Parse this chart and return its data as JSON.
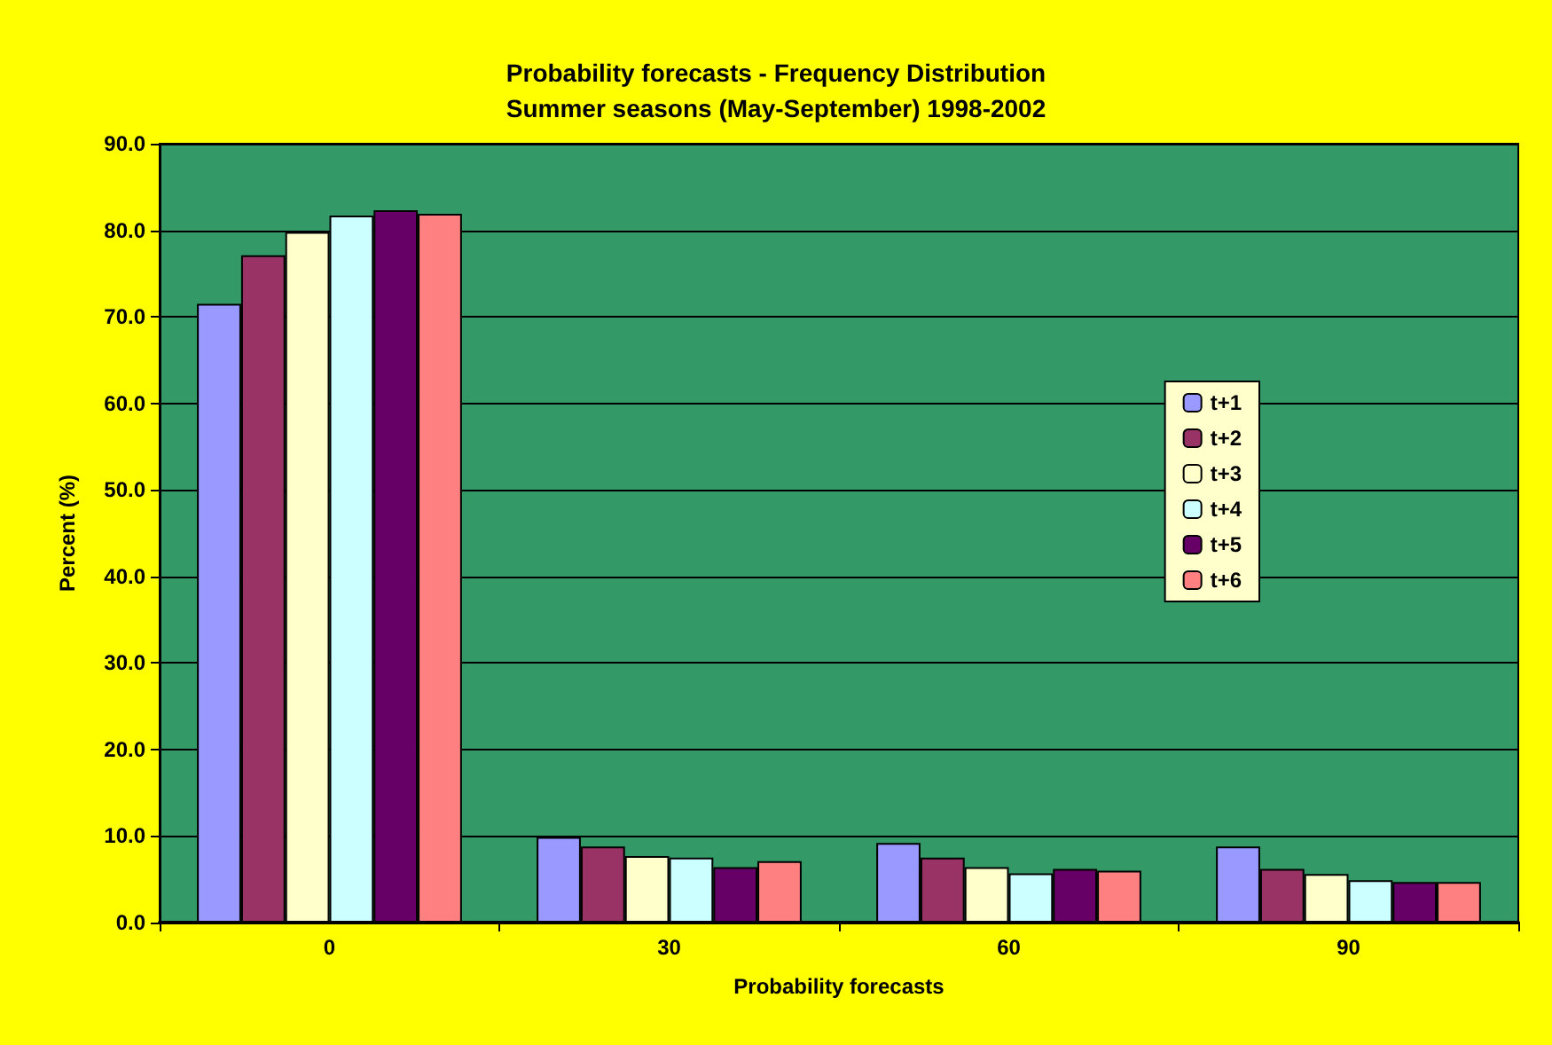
{
  "chart_data": {
    "type": "bar",
    "title": "Probability forecasts - Frequency Distribution\nSummer seasons (May-September) 1998-2002",
    "xlabel": "Probability forecasts",
    "ylabel": "Percent (%)",
    "categories": [
      "0",
      "30",
      "60",
      "90"
    ],
    "series": [
      {
        "name": "t+1",
        "color": "#9999ff",
        "values": [
          71.5,
          9.9,
          9.2,
          8.8
        ]
      },
      {
        "name": "t+2",
        "color": "#993366",
        "values": [
          77.1,
          8.8,
          7.5,
          6.2
        ]
      },
      {
        "name": "t+3",
        "color": "#ffffcc",
        "values": [
          79.8,
          7.7,
          6.4,
          5.6
        ]
      },
      {
        "name": "t+4",
        "color": "#ccffff",
        "values": [
          81.7,
          7.5,
          5.7,
          4.9
        ]
      },
      {
        "name": "t+5",
        "color": "#660066",
        "values": [
          82.3,
          6.4,
          6.2,
          4.7
        ]
      },
      {
        "name": "t+6",
        "color": "#ff8080",
        "values": [
          81.9,
          7.1,
          6.0,
          4.7
        ]
      }
    ],
    "ylim": [
      0,
      90
    ],
    "yticks": [
      {
        "value": 0,
        "label": "0.0"
      },
      {
        "value": 10,
        "label": "10.0"
      },
      {
        "value": 20,
        "label": "20.0"
      },
      {
        "value": 30,
        "label": "30.0"
      },
      {
        "value": 40,
        "label": "40.0"
      },
      {
        "value": 50,
        "label": "50.0"
      },
      {
        "value": 60,
        "label": "60.0"
      },
      {
        "value": 70,
        "label": "70.0"
      },
      {
        "value": 80,
        "label": "80.0"
      },
      {
        "value": 90,
        "label": "90.0"
      }
    ],
    "grid": "y",
    "legend": "right"
  }
}
